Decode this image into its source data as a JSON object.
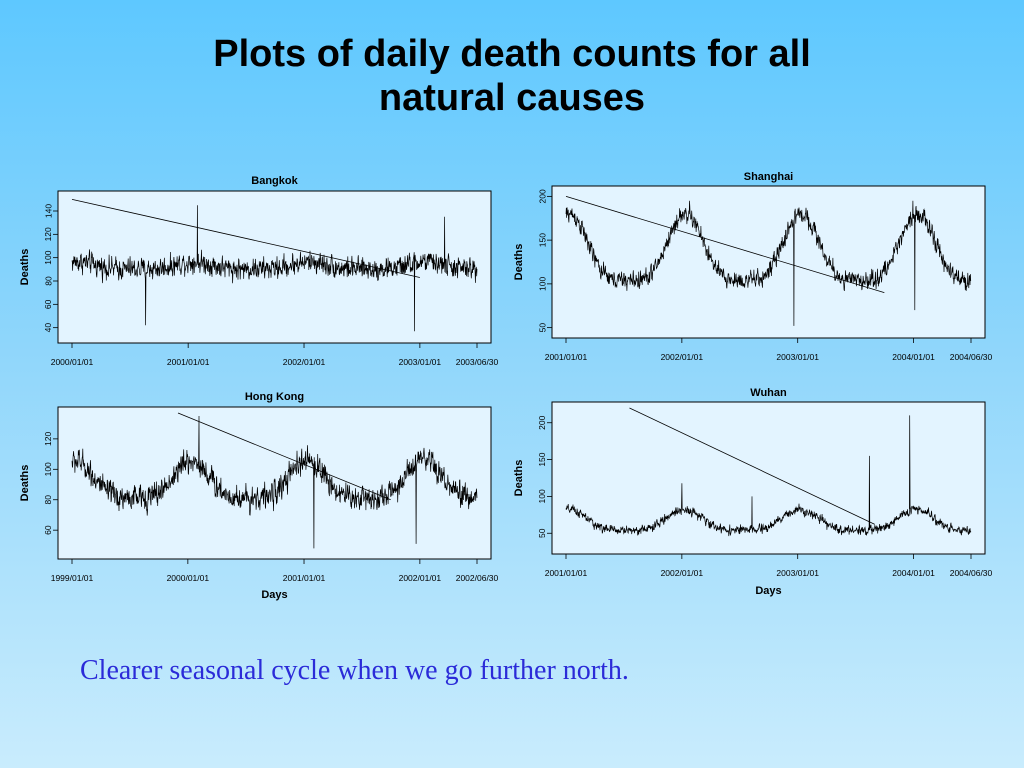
{
  "slide": {
    "title_line1": "Plots of daily death counts for all",
    "title_line2": "natural causes",
    "caption": "Clearer seasonal cycle when we go further north."
  },
  "colors": {
    "series": "#000000",
    "plot_bg": "#e3f4ff",
    "caption": "#2b2bd8"
  },
  "chart_data": [
    {
      "type": "line",
      "title": "Bangkok",
      "xlabel": "",
      "ylabel": "Deaths",
      "x_range": [
        "2000/01/01",
        "2003/06/30"
      ],
      "x_ticks": [
        "2000/01/01",
        "2001/01/01",
        "2002/01/01",
        "2003/01/01",
        "2003/06/30"
      ],
      "y_ticks": [
        40,
        60,
        80,
        100,
        120,
        140
      ],
      "ylim": [
        32,
        152
      ],
      "series_profile": {
        "mean": 92,
        "seasonal_amplitude": 3,
        "peak_fraction_of_year": 0.05,
        "noise": 9,
        "spikes": [
          {
            "date": "2000/08/20",
            "value": 42
          },
          {
            "date": "2001/01/30",
            "value": 145
          },
          {
            "date": "2002/12/15",
            "value": 37
          },
          {
            "date": "2003/03/20",
            "value": 135
          }
        ]
      },
      "overlay_line": {
        "from": {
          "date": "2000/01/01",
          "value": 150
        },
        "to": {
          "date": "2003/01/01",
          "value": 83
        }
      }
    },
    {
      "type": "line",
      "title": "Shanghai",
      "xlabel": "",
      "ylabel": "Deaths",
      "x_range": [
        "2001/01/01",
        "2004/06/30"
      ],
      "x_ticks": [
        "2001/01/01",
        "2002/01/01",
        "2003/01/01",
        "2004/01/01",
        "2004/06/30"
      ],
      "y_ticks": [
        50,
        100,
        150,
        200
      ],
      "ylim": [
        45,
        205
      ],
      "series_profile": {
        "mean": 125,
        "seasonal_amplitude": 38,
        "peak_fraction_of_year": 0.03,
        "noise": 10,
        "spikes": [
          {
            "date": "2002/01/25",
            "value": 195
          },
          {
            "date": "2002/12/20",
            "value": 52
          },
          {
            "date": "2003/12/30",
            "value": 195
          },
          {
            "date": "2004/01/05",
            "value": 70
          }
        ]
      },
      "overlay_line": {
        "from": {
          "date": "2001/01/01",
          "value": 200
        },
        "to": {
          "date": "2003/10/01",
          "value": 90
        }
      }
    },
    {
      "type": "line",
      "title": "Hong Kong",
      "xlabel": "Days",
      "ylabel": "Deaths",
      "x_range": [
        "1999/01/01",
        "2002/06/30"
      ],
      "x_ticks": [
        "1999/01/01",
        "2000/01/01",
        "2001/01/01",
        "2002/01/01",
        "2002/06/30"
      ],
      "y_ticks": [
        60,
        80,
        100,
        120
      ],
      "ylim": [
        45,
        137
      ],
      "series_profile": {
        "mean": 88,
        "seasonal_amplitude": 12,
        "peak_fraction_of_year": 0.03,
        "noise": 8,
        "spikes": [
          {
            "date": "2000/02/05",
            "value": 135
          },
          {
            "date": "2001/02/01",
            "value": 48
          },
          {
            "date": "2001/12/20",
            "value": 51
          }
        ]
      },
      "overlay_line": {
        "from": {
          "date": "1999/12/01",
          "value": 137
        },
        "to": {
          "date": "2001/10/01",
          "value": 80
        }
      }
    },
    {
      "type": "line",
      "title": "Wuhan",
      "xlabel": "Days",
      "ylabel": "Deaths",
      "x_range": [
        "2001/01/01",
        "2004/06/30"
      ],
      "x_ticks": [
        "2001/01/01",
        "2002/01/01",
        "2003/01/01",
        "2004/01/01",
        "2004/06/30"
      ],
      "y_ticks": [
        50,
        100,
        150,
        200
      ],
      "ylim": [
        30,
        220
      ],
      "series_profile": {
        "mean": 62,
        "seasonal_amplitude": 14,
        "peak_fraction_of_year": 0.02,
        "noise": 6,
        "spikes": [
          {
            "date": "2002/01/01",
            "value": 118
          },
          {
            "date": "2002/08/10",
            "value": 100
          },
          {
            "date": "2003/08/15",
            "value": 155
          },
          {
            "date": "2003/12/20",
            "value": 210
          }
        ]
      },
      "overlay_line": {
        "from": {
          "date": "2001/07/20",
          "value": 220
        },
        "to": {
          "date": "2003/09/01",
          "value": 62
        }
      }
    }
  ]
}
